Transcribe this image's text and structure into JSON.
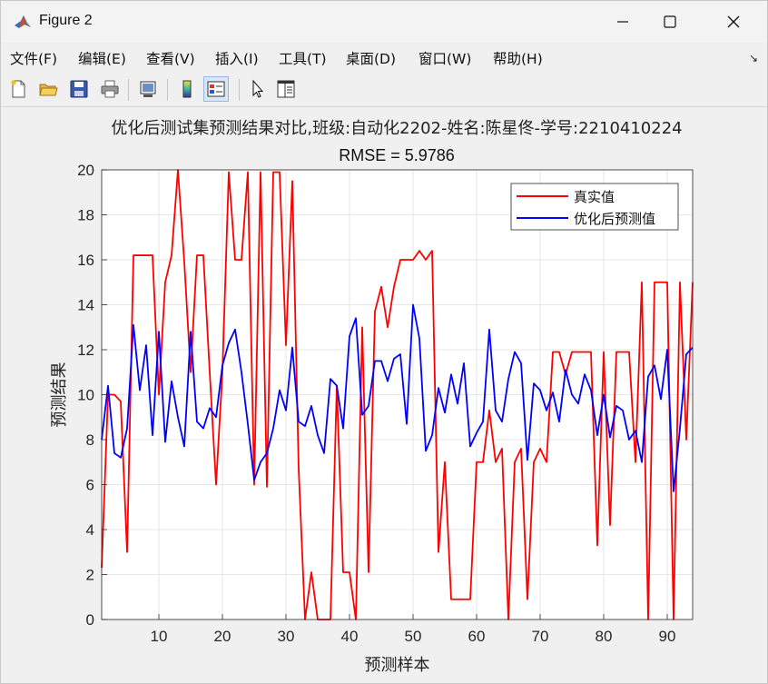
{
  "window": {
    "title": "Figure 2",
    "app_icon": "matlab-icon",
    "controls": [
      "minimize-icon",
      "maximize-icon",
      "close-icon"
    ]
  },
  "menubar": {
    "items": [
      "文件(F)",
      "编辑(E)",
      "查看(V)",
      "插入(I)",
      "工具(T)",
      "桌面(D)",
      "窗口(W)",
      "帮助(H)"
    ],
    "dock_arrow": "↘"
  },
  "toolbar": {
    "buttons": [
      "new-figure-icon",
      "open-file-icon",
      "save-icon",
      "print-icon",
      "link-plot-icon",
      "insert-colorbar-icon",
      "insert-legend-icon",
      "edit-plot-arrow-icon",
      "property-inspector-icon"
    ]
  },
  "chart_data": {
    "type": "line",
    "title": "优化后测试集预测结果对比,班级:自动化2202-姓名:陈星佟-学号:2210410224",
    "subtitle": "RMSE = 5.9786",
    "xlabel": "预测样本",
    "ylabel": "预测结果",
    "xlim": [
      1,
      94
    ],
    "ylim": [
      0,
      20
    ],
    "xticks": [
      10,
      20,
      30,
      40,
      50,
      60,
      70,
      80,
      90
    ],
    "yticks": [
      0,
      2,
      4,
      6,
      8,
      10,
      12,
      14,
      16,
      18,
      20
    ],
    "grid": true,
    "legend_position": "top-right",
    "series": [
      {
        "name": "真实值",
        "color": "#ff0000",
        "values": [
          2.3,
          10,
          10,
          9.7,
          3,
          16.2,
          16.2,
          16.2,
          16.2,
          10,
          15,
          16.2,
          20,
          15.9,
          11,
          16.2,
          16.2,
          11,
          6,
          11,
          19.9,
          16,
          16,
          19.9,
          6,
          19.9,
          5.9,
          19.9,
          19.9,
          12.2,
          19.5,
          6.7,
          0,
          2.1,
          0,
          0,
          0,
          10.4,
          2.1,
          2.1,
          0,
          13,
          2.1,
          13.7,
          14.8,
          13,
          14.8,
          16,
          16,
          16,
          16.4,
          16,
          16.4,
          3,
          7,
          0.9,
          0.9,
          0.9,
          0.9,
          7,
          7,
          9.3,
          7,
          7.6,
          0,
          7,
          7.6,
          0.9,
          7,
          7.6,
          7,
          11.9,
          11.9,
          10.9,
          11.9,
          11.9,
          11.9,
          11.9,
          3.3,
          11.9,
          4.2,
          11.9,
          11.9,
          11.9,
          7,
          15,
          0,
          15,
          15,
          15,
          0,
          15,
          8,
          15
        ]
      },
      {
        "name": "优化后预测值",
        "color": "#0000ff",
        "values": [
          8,
          10.4,
          7.4,
          7.2,
          8.5,
          13.1,
          10.2,
          12.2,
          8.2,
          12.8,
          7.9,
          10.6,
          9,
          7.7,
          12.8,
          8.8,
          8.5,
          9.4,
          9,
          11.3,
          12.3,
          12.9,
          11,
          8.7,
          6.2,
          7,
          7.4,
          8.5,
          10.2,
          9.3,
          12.1,
          8.8,
          8.6,
          9.5,
          8.2,
          7.4,
          10.7,
          10.4,
          8.5,
          12.6,
          13.4,
          9.1,
          9.5,
          11.5,
          11.5,
          10.6,
          11.6,
          11.8,
          8.7,
          14,
          12.5,
          7.5,
          8.2,
          10.3,
          9.2,
          10.9,
          9.6,
          11.4,
          7.7,
          8.3,
          8.8,
          12.9,
          9.3,
          8.8,
          10.7,
          11.9,
          11.4,
          7.1,
          10.5,
          10.2,
          9.3,
          10.1,
          8.8,
          11.1,
          10,
          9.6,
          10.9,
          10.2,
          8.2,
          10,
          8.1,
          9.5,
          9.3,
          8,
          8.4,
          7,
          10.8,
          11.3,
          9.8,
          12,
          5.7,
          8.5,
          11.8,
          12.1
        ]
      }
    ]
  }
}
